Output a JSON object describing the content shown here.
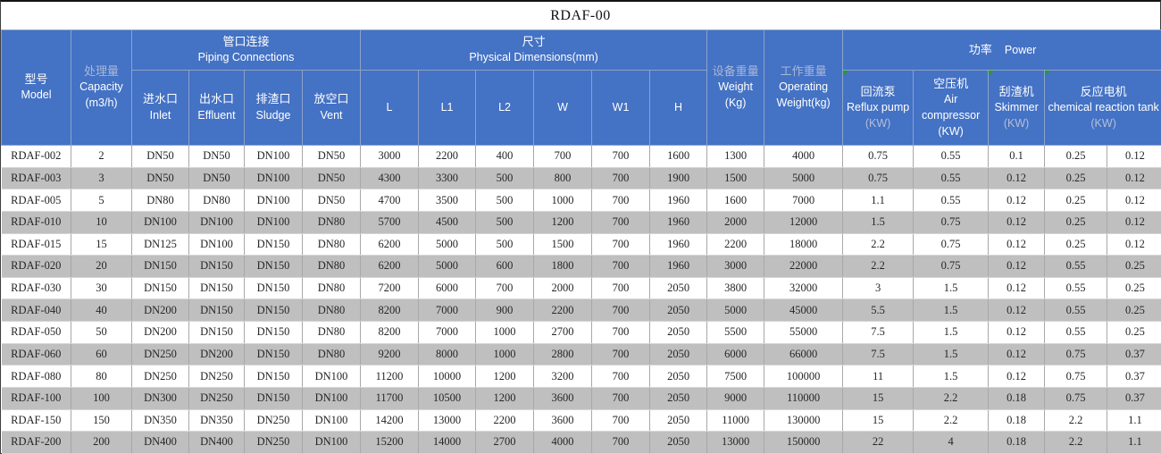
{
  "title": "RDAF-00",
  "colors": {
    "header_blue": "#4472C4",
    "stripe_gray": "#bfbfbf",
    "header_muted_text": "#a9b7d8",
    "flag_green": "#1f9e25"
  },
  "header": {
    "model": {
      "zh": "型号",
      "en": "Model"
    },
    "capacity": {
      "zh": "处理量",
      "en": "Capacity",
      "unit": "(m3/h)"
    },
    "piping": {
      "zh": "管口连接",
      "en": "Piping Connections"
    },
    "inlet": {
      "zh": "进水口",
      "en": "Inlet"
    },
    "effluent": {
      "zh": "出水口",
      "en": "Effluent"
    },
    "sludge": {
      "zh": "排渣口",
      "en": "Sludge"
    },
    "vent": {
      "zh": "放空口",
      "en": "Vent"
    },
    "dims": {
      "zh": "尺寸",
      "en": "Physical Dimensions(mm)"
    },
    "dim_cols": [
      "L",
      "L1",
      "L2",
      "W",
      "W1",
      "H"
    ],
    "weight": {
      "zh": "设备重量",
      "en": "Weight",
      "unit": "(Kg)"
    },
    "opweight": {
      "zh": "工作重量",
      "en": "Operating Weight(kg)"
    },
    "power": {
      "zh": "功率",
      "en": "Power"
    },
    "reflux": {
      "zh": "回流泵",
      "en": "Reflux pump",
      "unit": "(KW)"
    },
    "air": {
      "zh": "空压机",
      "en": "Air compressor",
      "unit": "(KW)"
    },
    "skimmer": {
      "zh": "刮渣机",
      "en": "Skimmer",
      "unit": "(KW)"
    },
    "reaction": {
      "zh": "反应电机",
      "en": "chemical reaction tank",
      "unit": "(KW)"
    }
  },
  "columns": [
    "model",
    "capacity",
    "inlet",
    "effluent",
    "sludge",
    "vent",
    "L",
    "L1",
    "L2",
    "W",
    "W1",
    "H",
    "weight",
    "operating_weight",
    "reflux_pump_kw",
    "air_compressor_kw",
    "skimmer_kw",
    "reaction_tank_kw_1",
    "reaction_tank_kw_2"
  ],
  "rows": [
    [
      "RDAF-002",
      "2",
      "DN50",
      "DN50",
      "DN100",
      "DN50",
      "3000",
      "2200",
      "400",
      "700",
      "700",
      "1600",
      "1300",
      "4000",
      "0.75",
      "0.55",
      "0.1",
      "0.25",
      "0.12"
    ],
    [
      "RDAF-003",
      "3",
      "DN50",
      "DN50",
      "DN100",
      "DN50",
      "4300",
      "3300",
      "500",
      "800",
      "700",
      "1900",
      "1500",
      "5000",
      "0.75",
      "0.55",
      "0.12",
      "0.25",
      "0.12"
    ],
    [
      "RDAF-005",
      "5",
      "DN80",
      "DN80",
      "DN100",
      "DN50",
      "4700",
      "3500",
      "500",
      "1000",
      "700",
      "1960",
      "1600",
      "7000",
      "1.1",
      "0.55",
      "0.12",
      "0.25",
      "0.12"
    ],
    [
      "RDAF-010",
      "10",
      "DN100",
      "DN100",
      "DN100",
      "DN80",
      "5700",
      "4500",
      "500",
      "1200",
      "700",
      "1960",
      "2000",
      "12000",
      "1.5",
      "0.75",
      "0.12",
      "0.25",
      "0.12"
    ],
    [
      "RDAF-015",
      "15",
      "DN125",
      "DN100",
      "DN150",
      "DN80",
      "6200",
      "5000",
      "500",
      "1500",
      "700",
      "1960",
      "2200",
      "18000",
      "2.2",
      "0.75",
      "0.12",
      "0.25",
      "0.12"
    ],
    [
      "RDAF-020",
      "20",
      "DN150",
      "DN150",
      "DN150",
      "DN80",
      "6200",
      "5000",
      "600",
      "1800",
      "700",
      "1960",
      "3000",
      "22000",
      "2.2",
      "0.75",
      "0.12",
      "0.55",
      "0.25"
    ],
    [
      "RDAF-030",
      "30",
      "DN150",
      "DN150",
      "DN150",
      "DN80",
      "7200",
      "6000",
      "700",
      "2000",
      "700",
      "2050",
      "3800",
      "32000",
      "3",
      "1.5",
      "0.12",
      "0.55",
      "0.25"
    ],
    [
      "RDAF-040",
      "40",
      "DN200",
      "DN150",
      "DN150",
      "DN80",
      "8200",
      "7000",
      "900",
      "2200",
      "700",
      "2050",
      "5000",
      "45000",
      "5.5",
      "1.5",
      "0.12",
      "0.55",
      "0.25"
    ],
    [
      "RDAF-050",
      "50",
      "DN200",
      "DN150",
      "DN150",
      "DN80",
      "8200",
      "7000",
      "1000",
      "2700",
      "700",
      "2050",
      "5500",
      "55000",
      "7.5",
      "1.5",
      "0.12",
      "0.55",
      "0.25"
    ],
    [
      "RDAF-060",
      "60",
      "DN250",
      "DN200",
      "DN150",
      "DN80",
      "9200",
      "8000",
      "1000",
      "2800",
      "700",
      "2050",
      "6000",
      "66000",
      "7.5",
      "1.5",
      "0.12",
      "0.75",
      "0.37"
    ],
    [
      "RDAF-080",
      "80",
      "DN250",
      "DN250",
      "DN150",
      "DN100",
      "11200",
      "10000",
      "1200",
      "3200",
      "700",
      "2050",
      "7500",
      "100000",
      "11",
      "1.5",
      "0.12",
      "0.75",
      "0.37"
    ],
    [
      "RDAF-100",
      "100",
      "DN300",
      "DN250",
      "DN150",
      "DN100",
      "11700",
      "10500",
      "1200",
      "3600",
      "700",
      "2050",
      "9000",
      "110000",
      "15",
      "2.2",
      "0.18",
      "0.75",
      "0.37"
    ],
    [
      "RDAF-150",
      "150",
      "DN350",
      "DN350",
      "DN250",
      "DN100",
      "14200",
      "13000",
      "2200",
      "3600",
      "700",
      "2050",
      "11000",
      "130000",
      "15",
      "2.2",
      "0.18",
      "2.2",
      "1.1"
    ],
    [
      "RDAF-200",
      "200",
      "DN400",
      "DN400",
      "DN250",
      "DN100",
      "15200",
      "14000",
      "2700",
      "4000",
      "700",
      "2050",
      "13000",
      "150000",
      "22",
      "4",
      "0.18",
      "2.2",
      "1.1"
    ]
  ]
}
